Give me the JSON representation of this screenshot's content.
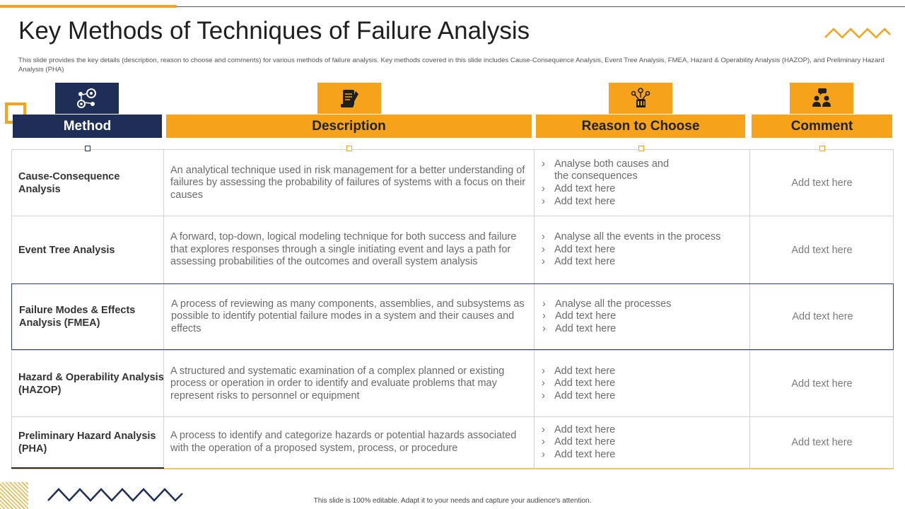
{
  "page": {
    "title": "Key Methods of Techniques of Failure Analysis",
    "subtitle": "This slide provides the key details (description, reason to choose and comments) for various methods of failure analysis. Key methods covered in this slide includes Cause-Consequence Analysis, Event Tree Analysis, FMEA, Hazard & Operability Analysis (HAZOP), and Preliminary Hazard Analysis (PHA)",
    "footer": "This slide is 100% editable. Adapt it to your needs and capture your audience's attention."
  },
  "colors": {
    "navy": "#1E2E56",
    "orange": "#F7A21B",
    "highlight_border": "#2E3C78"
  },
  "headers": [
    {
      "label": "Method",
      "icon": "gears-network-icon"
    },
    {
      "label": "Description",
      "icon": "document-pen-icon"
    },
    {
      "label": "Reason to Choose",
      "icon": "hand-network-icon"
    },
    {
      "label": "Comment",
      "icon": "people-chat-icon"
    }
  ],
  "rows": [
    {
      "method": "Cause-Consequence Analysis",
      "description": "An analytical technique used in risk management for a better understanding of failures by assessing the probability of failures of systems with a focus on their causes",
      "reasons": [
        "Analyse both causes and the consequences",
        "Add text here",
        "Add text here"
      ],
      "comment": "Add text here"
    },
    {
      "method": "Event Tree Analysis",
      "description": "A forward, top-down, logical modeling technique for both success and failure that explores responses through a single initiating event and lays a path for assessing probabilities of the outcomes and overall system analysis",
      "reasons": [
        "Analyse all the events in the process",
        "Add text here",
        "Add text here"
      ],
      "comment": "Add text here"
    },
    {
      "method": "Failure Modes & Effects Analysis (FMEA)",
      "description": "A process of reviewing as many components, assemblies, and subsystems as possible to identify potential failure modes in a system and their causes and effects",
      "reasons": [
        "Analyse all the processes",
        "Add text here",
        "Add text here"
      ],
      "comment": "Add text here"
    },
    {
      "method": "Hazard & Operability Analysis (HAZOP)",
      "description": "A structured and systematic examination of a complex planned or existing process or operation in order to identify and evaluate problems that may represent risks to personnel or equipment",
      "reasons": [
        "Add text here",
        "Add text here",
        "Add text here"
      ],
      "comment": "Add text here"
    },
    {
      "method": "Preliminary Hazard Analysis (PHA)",
      "description": "A process to identify and categorize hazards or potential hazards associated with the operation of a proposed system, process, or procedure",
      "reasons": [
        "Add text here",
        "Add text here",
        "Add text here"
      ],
      "comment": "Add text here"
    }
  ]
}
